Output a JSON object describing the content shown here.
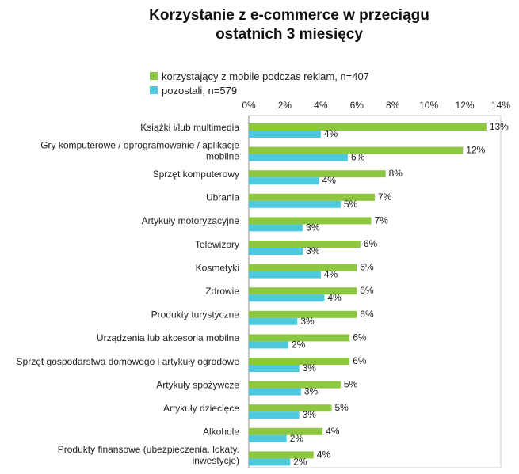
{
  "chart_data": {
    "type": "bar",
    "orientation": "horizontal",
    "title": "Korzystanie z e-commerce w przeciągu ostatnich 3 miesięcy",
    "title_lines": [
      "Korzystanie z e-commerce w przeciągu",
      "ostatnich 3 miesięcy"
    ],
    "x_ticks": [
      "0%",
      "2%",
      "4%",
      "6%",
      "8%",
      "10%",
      "12%",
      "14%"
    ],
    "xlim": [
      0,
      14
    ],
    "value_unit": "%",
    "grid": false,
    "legend_position": "top",
    "categories": [
      "Książki i/lub multimedia",
      "Gry komputerowe / oprogramowanie / aplikacje mobilne",
      "Sprzęt komputerowy",
      "Ubrania",
      "Artykuły motoryzacyjne",
      "Telewizory",
      "Kosmetyki",
      "Zdrowie",
      "Produkty turystyczne",
      "Urządzenia lub akcesoria mobilne",
      "Sprzęt gospodarstwa domowego i artykuły ogrodowe",
      "Artykuły spożywcze",
      "Artykuły dziecięce",
      "Alkohole",
      "Produkty finansowe (ubezpieczenia. lokaty. inwestycje)"
    ],
    "category_label_lines": [
      [
        "Książki i/lub multimedia"
      ],
      [
        "Gry komputerowe / oprogramowanie / aplikacje",
        "mobilne"
      ],
      [
        "Sprzęt komputerowy"
      ],
      [
        "Ubrania"
      ],
      [
        "Artykuły motoryzacyjne"
      ],
      [
        "Telewizory"
      ],
      [
        "Kosmetyki"
      ],
      [
        "Zdrowie"
      ],
      [
        "Produkty turystyczne"
      ],
      [
        "Urządzenia lub akcesoria mobilne"
      ],
      [
        "Sprzęt gospodarstwa domowego i artykuły ogrodowe"
      ],
      [
        "Artykuły spożywcze"
      ],
      [
        "Artykuły dziecięce"
      ],
      [
        "Alkohole"
      ],
      [
        "Produkty finansowe (ubezpieczenia. lokaty.",
        "inwestycje)"
      ]
    ],
    "series": [
      {
        "name": "korzystający z mobile podczas reklam, n=407",
        "color": "#8dc63f",
        "values": [
          13.2,
          11.9,
          7.6,
          7.0,
          6.8,
          6.2,
          6.0,
          6.0,
          6.0,
          5.6,
          5.6,
          5.1,
          4.6,
          4.1,
          3.6
        ],
        "labels": [
          "13%",
          "12%",
          "8%",
          "7%",
          "7%",
          "6%",
          "6%",
          "6%",
          "6%",
          "6%",
          "6%",
          "5%",
          "5%",
          "4%",
          "4%"
        ]
      },
      {
        "name": "pozostali, n=579",
        "color": "#4dc8dc",
        "values": [
          4.0,
          5.5,
          3.9,
          5.1,
          3.0,
          3.0,
          4.0,
          4.2,
          2.7,
          2.2,
          2.8,
          2.9,
          2.8,
          2.1,
          2.3
        ],
        "labels": [
          "4%",
          "6%",
          "4%",
          "5%",
          "3%",
          "3%",
          "4%",
          "4%",
          "3%",
          "2%",
          "3%",
          "3%",
          "3%",
          "2%",
          "2%"
        ]
      }
    ]
  }
}
